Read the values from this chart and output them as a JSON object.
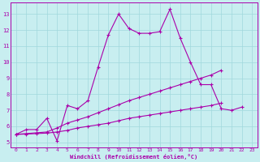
{
  "xlabel": "Windchill (Refroidissement éolien,°C)",
  "background_color": "#c8eef0",
  "grid_color": "#a0d8dc",
  "line_color": "#aa00aa",
  "xlim": [
    -0.5,
    23.5
  ],
  "ylim": [
    4.7,
    13.7
  ],
  "yticks": [
    5,
    6,
    7,
    8,
    9,
    10,
    11,
    12,
    13
  ],
  "xticks": [
    0,
    1,
    2,
    3,
    4,
    5,
    6,
    7,
    8,
    9,
    10,
    11,
    12,
    13,
    14,
    15,
    16,
    17,
    18,
    19,
    20,
    21,
    22,
    23
  ],
  "line1_y": [
    5.5,
    5.8,
    5.8,
    6.5,
    5.1,
    7.3,
    7.1,
    7.6,
    9.7,
    11.7,
    13.0,
    12.1,
    11.8,
    11.8,
    11.9,
    13.3,
    11.5,
    10.0,
    8.6,
    8.6,
    7.1,
    7.0,
    7.2,
    null
  ],
  "line2_y": [
    5.5,
    5.55,
    5.6,
    5.65,
    5.9,
    6.2,
    6.4,
    6.6,
    6.85,
    7.1,
    7.35,
    7.6,
    7.8,
    8.0,
    8.2,
    8.4,
    8.6,
    8.8,
    9.0,
    9.2,
    9.5,
    null,
    null,
    null
  ],
  "line3_y": [
    5.5,
    5.52,
    5.55,
    5.58,
    5.65,
    5.75,
    5.9,
    6.0,
    6.1,
    6.2,
    6.35,
    6.5,
    6.6,
    6.7,
    6.8,
    6.9,
    7.0,
    7.1,
    7.2,
    7.3,
    7.45,
    null,
    null,
    null
  ]
}
